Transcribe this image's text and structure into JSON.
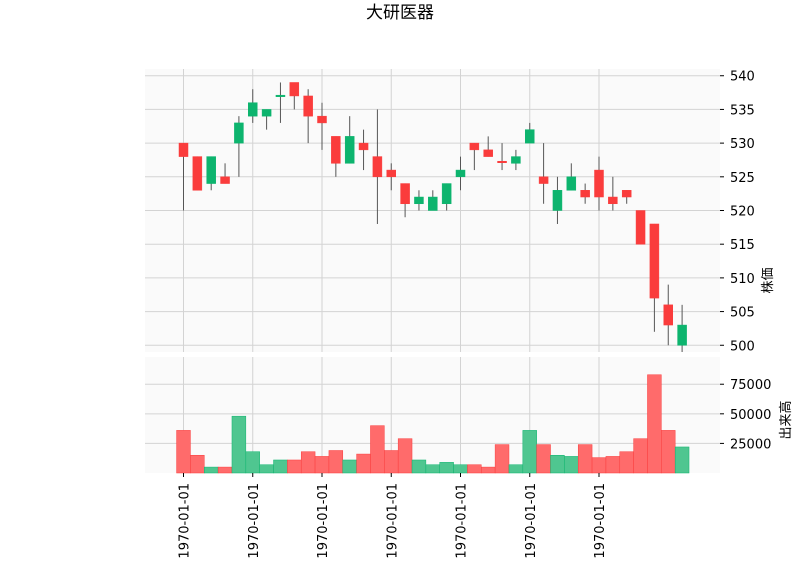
{
  "chart_data": {
    "type": "candlestick",
    "title": "大研医器",
    "price_ylabel": "株価",
    "volume_ylabel": "出来高",
    "colors": {
      "up": "#0db46e",
      "down": "#fa3c3c",
      "up_volume": "#4fc690",
      "down_volume": "#ff6b6b",
      "grid": "#d3d3d3",
      "panel_bg": "#fafafa",
      "wick": "#555555"
    },
    "price_ylim": [
      499,
      541
    ],
    "price_yticks": [
      500,
      505,
      510,
      515,
      520,
      525,
      530,
      535,
      540
    ],
    "volume_ylim": [
      0,
      98000
    ],
    "volume_yticks": [
      "25000",
      "50000",
      "75000"
    ],
    "x_tick_labels": [
      "1970-01-01",
      "1970-01-01",
      "1970-01-01",
      "1970-01-01",
      "1970-01-01",
      "1970-01-01",
      "1970-01-01"
    ],
    "x_tick_index": [
      0,
      5,
      10,
      15,
      20,
      25,
      30
    ],
    "candles": [
      {
        "open": 530,
        "high": 530,
        "low": 520,
        "close": 528,
        "volume": 36000
      },
      {
        "open": 528,
        "high": 528,
        "low": 523,
        "close": 523,
        "volume": 15000
      },
      {
        "open": 524,
        "high": 528,
        "low": 523,
        "close": 528,
        "volume": 5000
      },
      {
        "open": 525,
        "high": 527,
        "low": 524,
        "close": 524,
        "volume": 5000
      },
      {
        "open": 530,
        "high": 534,
        "low": 525,
        "close": 533,
        "volume": 48000
      },
      {
        "open": 534,
        "high": 538,
        "low": 533,
        "close": 536,
        "volume": 18000
      },
      {
        "open": 534,
        "high": 535,
        "low": 532,
        "close": 535,
        "volume": 7000
      },
      {
        "open": 537,
        "high": 539,
        "low": 533,
        "close": 537,
        "volume": 11000
      },
      {
        "open": 539,
        "high": 539,
        "low": 535,
        "close": 537,
        "volume": 11000
      },
      {
        "open": 537,
        "high": 538,
        "low": 530,
        "close": 534,
        "volume": 18000
      },
      {
        "open": 534,
        "high": 536,
        "low": 529,
        "close": 533,
        "volume": 14000
      },
      {
        "open": 531,
        "high": 531,
        "low": 525,
        "close": 527,
        "volume": 19000
      },
      {
        "open": 527,
        "high": 534,
        "low": 527,
        "close": 531,
        "volume": 11000
      },
      {
        "open": 530,
        "high": 532,
        "low": 526,
        "close": 529,
        "volume": 16000
      },
      {
        "open": 528,
        "high": 535,
        "low": 518,
        "close": 525,
        "volume": 40000
      },
      {
        "open": 526,
        "high": 527,
        "low": 523,
        "close": 525,
        "volume": 19000
      },
      {
        "open": 524,
        "high": 524,
        "low": 519,
        "close": 521,
        "volume": 29000
      },
      {
        "open": 521,
        "high": 523,
        "low": 520,
        "close": 522,
        "volume": 11000
      },
      {
        "open": 520,
        "high": 523,
        "low": 520,
        "close": 522,
        "volume": 7000
      },
      {
        "open": 521,
        "high": 524,
        "low": 520,
        "close": 524,
        "volume": 9000
      },
      {
        "open": 525,
        "high": 528,
        "low": 523,
        "close": 526,
        "volume": 7000
      },
      {
        "open": 530,
        "high": 530,
        "low": 526,
        "close": 529,
        "volume": 7000
      },
      {
        "open": 529,
        "high": 531,
        "low": 528,
        "close": 528,
        "volume": 5000
      },
      {
        "open": 527.2,
        "high": 530,
        "low": 526,
        "close": 527,
        "volume": 24000
      },
      {
        "open": 527,
        "high": 529,
        "low": 526,
        "close": 528,
        "volume": 7000
      },
      {
        "open": 530,
        "high": 533,
        "low": 530,
        "close": 532,
        "volume": 36000
      },
      {
        "open": 525,
        "high": 530,
        "low": 521,
        "close": 524,
        "volume": 24000
      },
      {
        "open": 520,
        "high": 525,
        "low": 518,
        "close": 523,
        "volume": 15000
      },
      {
        "open": 523,
        "high": 527,
        "low": 523,
        "close": 525,
        "volume": 14000
      },
      {
        "open": 523,
        "high": 524,
        "low": 521,
        "close": 522,
        "volume": 24000
      },
      {
        "open": 526,
        "high": 528,
        "low": 520,
        "close": 522,
        "volume": 13000
      },
      {
        "open": 522,
        "high": 525,
        "low": 520,
        "close": 521,
        "volume": 14000
      },
      {
        "open": 523,
        "high": 523,
        "low": 521,
        "close": 522,
        "volume": 18000
      },
      {
        "open": 520,
        "high": 520,
        "low": 515,
        "close": 515,
        "volume": 29000
      },
      {
        "open": 518,
        "high": 518,
        "low": 502,
        "close": 507,
        "volume": 83000
      },
      {
        "open": 506,
        "high": 509,
        "low": 500,
        "close": 503,
        "volume": 36000
      },
      {
        "open": 500,
        "high": 506,
        "low": 499,
        "close": 503,
        "volume": 22000
      }
    ]
  }
}
